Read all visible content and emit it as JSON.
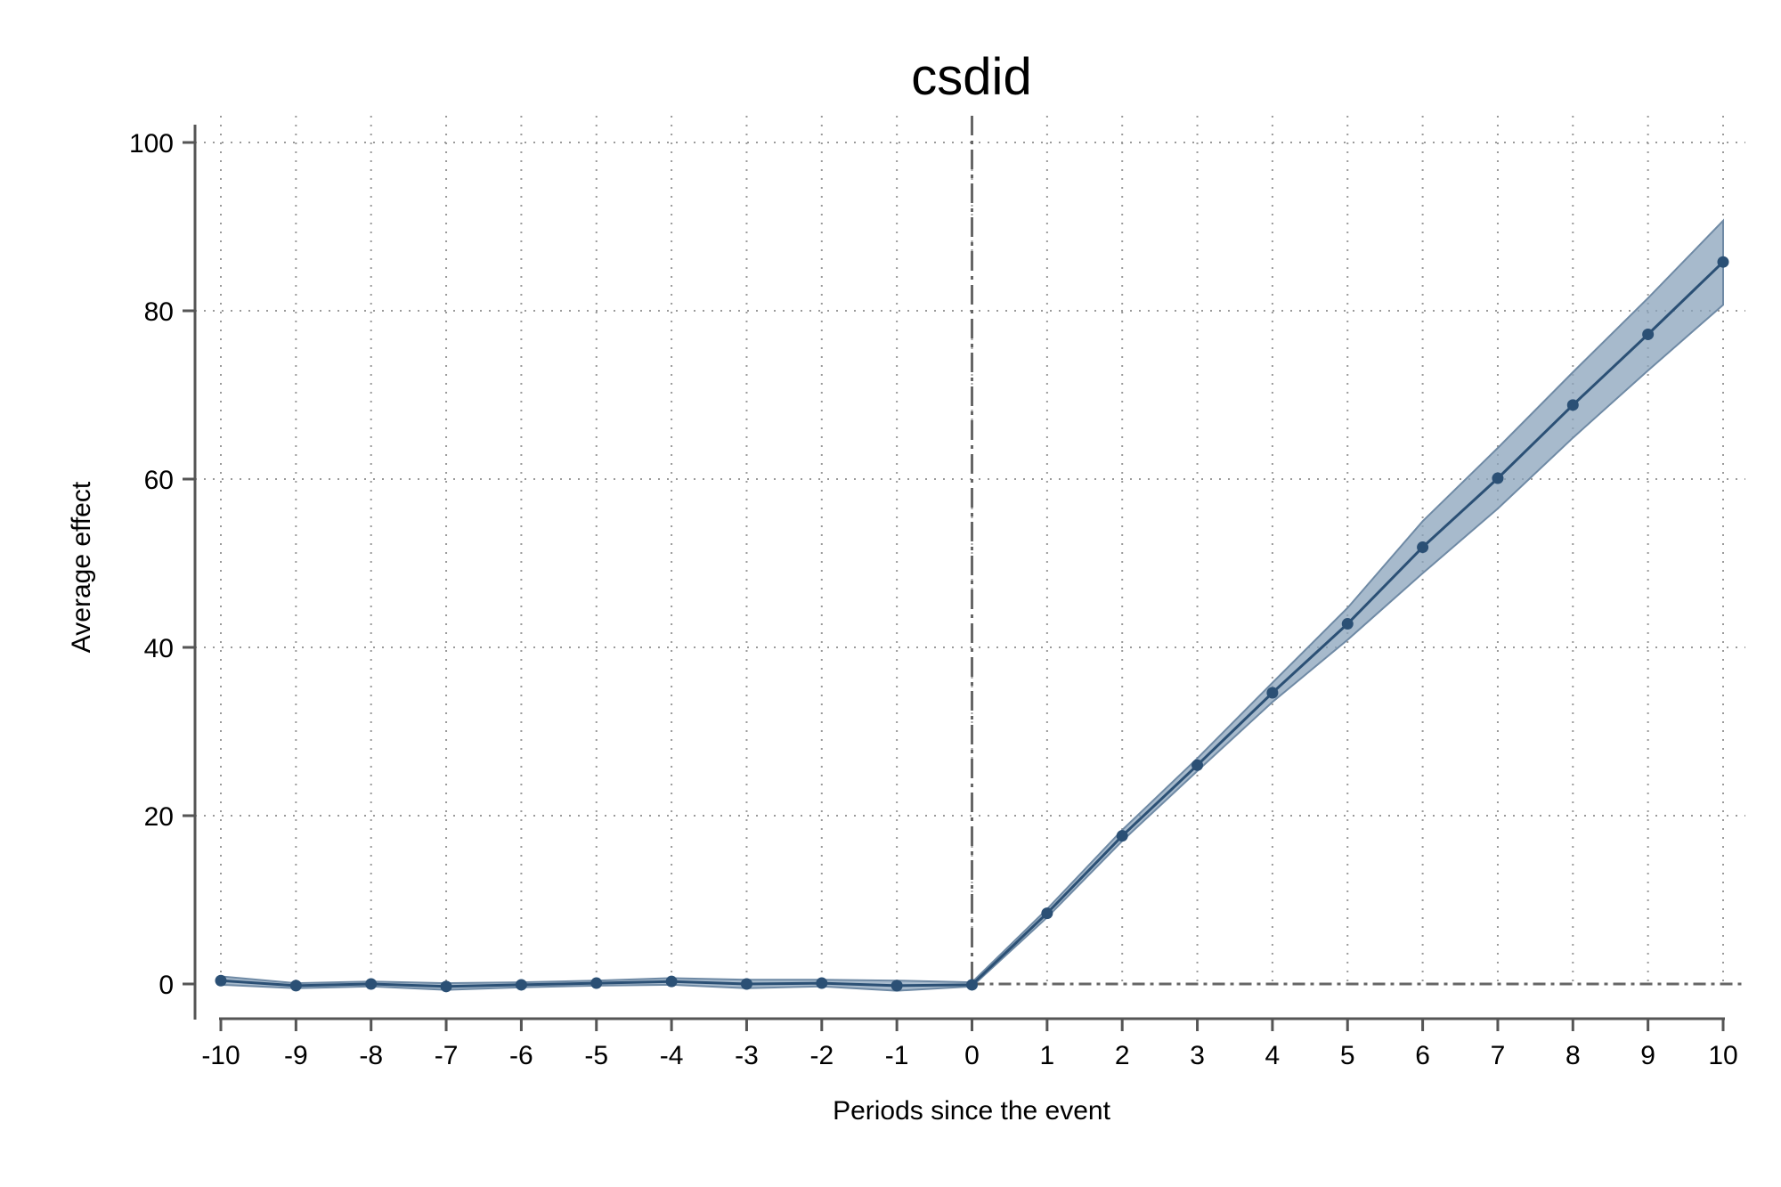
{
  "chart_data": {
    "type": "line",
    "title": "csdid",
    "xlabel": "Periods since the event",
    "ylabel": "Average effect",
    "xlim": [
      -10,
      10
    ],
    "ylim": [
      0,
      100
    ],
    "x_ticks": [
      -10,
      -9,
      -8,
      -7,
      -6,
      -5,
      -4,
      -3,
      -2,
      -1,
      0,
      1,
      2,
      3,
      4,
      5,
      6,
      7,
      8,
      9,
      10
    ],
    "y_ticks": [
      0,
      20,
      40,
      60,
      80,
      100
    ],
    "grid": true,
    "reference_lines": {
      "x": 0,
      "y": 0
    },
    "series": [
      {
        "x": [
          -10,
          -9,
          -8,
          -7,
          -6,
          -5,
          -4,
          -3,
          -2,
          -1,
          0,
          1,
          2,
          3,
          4,
          5,
          6,
          7,
          8,
          9,
          10
        ],
        "y": [
          0.4,
          -0.2,
          0.0,
          -0.3,
          -0.1,
          0.1,
          0.3,
          0.0,
          0.1,
          -0.2,
          -0.1,
          8.4,
          17.6,
          26.0,
          34.6,
          42.8,
          51.9,
          60.1,
          68.8,
          77.2,
          85.8
        ],
        "ci_lower": [
          -0.1,
          -0.5,
          -0.3,
          -0.7,
          -0.4,
          -0.2,
          -0.1,
          -0.5,
          -0.3,
          -0.8,
          -0.3,
          7.9,
          17.0,
          25.3,
          33.5,
          40.9,
          48.8,
          56.5,
          64.9,
          72.9,
          80.7
        ],
        "ci_upper": [
          0.9,
          0.1,
          0.3,
          0.1,
          0.2,
          0.4,
          0.7,
          0.5,
          0.5,
          0.4,
          0.2,
          8.9,
          18.3,
          26.8,
          35.8,
          44.7,
          55.0,
          63.7,
          72.7,
          81.5,
          90.7
        ]
      }
    ]
  },
  "colors": {
    "line": "#2b5075",
    "band": "#8aa3bb",
    "axis": "#555555",
    "grid": "#9a9a9a",
    "reference": "#666666"
  }
}
